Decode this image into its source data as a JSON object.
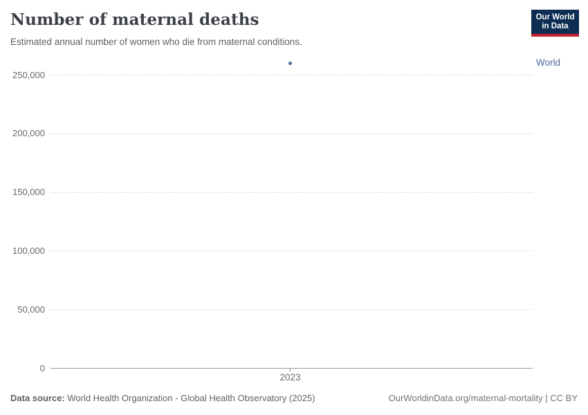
{
  "header": {
    "title": "Number of maternal deaths",
    "subtitle": "Estimated annual number of women who die from maternal conditions."
  },
  "logo": {
    "line1": "Our World",
    "line2": "in Data"
  },
  "chart_data": {
    "type": "scatter",
    "title": "Number of maternal deaths",
    "subtitle": "Estimated annual number of women who die from maternal conditions.",
    "x": [
      2023
    ],
    "series": [
      {
        "name": "World",
        "color": "#4c6a9c",
        "values": [
          260000
        ]
      }
    ],
    "x_axis": {
      "ticks": [
        2023
      ],
      "tick_labels": [
        "2023"
      ]
    },
    "y_axis": {
      "ticks": [
        0,
        50000,
        100000,
        150000,
        200000,
        250000
      ],
      "tick_labels": [
        "0",
        "50,000",
        "100,000",
        "150,000",
        "200,000",
        "250,000"
      ],
      "range": [
        0,
        262000
      ],
      "gridlines": "dashed"
    },
    "legend": {
      "position": "right",
      "entries": [
        "World"
      ]
    }
  },
  "footer": {
    "data_source_label": "Data source:",
    "data_source": " World Health Organization - Global Health Observatory (2025)",
    "note": "OurWorldinData.org/maternal-mortality | CC BY"
  },
  "colors": {
    "accent": "#4c6a9c",
    "logo_bg": "#0d2d52",
    "logo_stripe": "#c0242c",
    "gridline": "#dcdcdc",
    "axis": "#9b9b9b"
  }
}
